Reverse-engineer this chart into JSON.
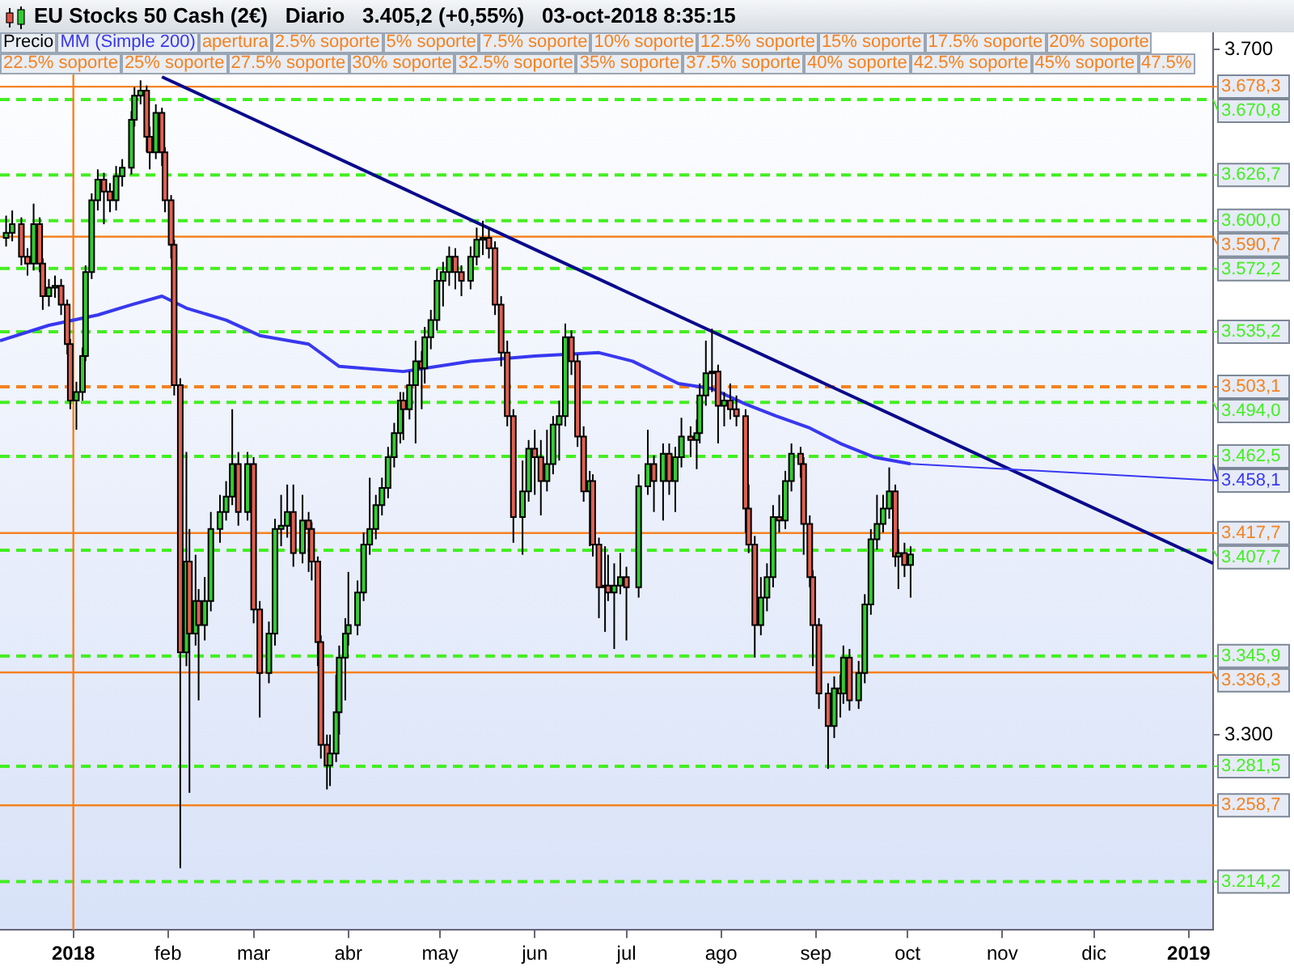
{
  "chart_data": {
    "type": "candlestick",
    "title": "EU Stocks 50 Cash (2€)   Diario   3.405,2 (+0,55%)   03-oct-2018 8:35:15",
    "legend": "top left",
    "grid": false,
    "xlim": [
      "2017-12-08",
      "2019-01-09"
    ],
    "xticks": [
      {
        "value": "2018-01-01",
        "label": "2018"
      },
      {
        "value": "2018-02-01",
        "label": "feb"
      },
      {
        "value": "2018-03-01",
        "label": "mar"
      },
      {
        "value": "2018-04-01",
        "label": "abr"
      },
      {
        "value": "2018-05-01",
        "label": "may"
      },
      {
        "value": "2018-06-01",
        "label": "jun"
      },
      {
        "value": "2018-07-01",
        "label": "jul"
      },
      {
        "value": "2018-08-01",
        "label": "ago"
      },
      {
        "value": "2018-09-01",
        "label": "sep"
      },
      {
        "value": "2018-10-01",
        "label": "oct"
      },
      {
        "value": "2018-11-01",
        "label": "nov"
      },
      {
        "value": "2018-12-01",
        "label": "dic"
      },
      {
        "value": "2019-01-01",
        "label": "2019"
      }
    ],
    "ylim": [
      3186,
      3710
    ],
    "yticks": [
      {
        "value": 3300,
        "label": "3.300"
      },
      {
        "value": 3700,
        "label": "3.700"
      }
    ],
    "series": [
      {
        "name": "Precio",
        "type": "candlestick",
        "x": [
          "2017-12-10",
          "2017-12-12",
          "2017-12-15",
          "2017-12-17",
          "2017-12-19",
          "2017-12-21",
          "2017-12-22",
          "2017-12-24",
          "2017-12-26",
          "2017-12-28",
          "2017-12-30",
          "2017-12-31",
          "2018-01-02",
          "2018-01-04",
          "2018-01-05",
          "2018-01-07",
          "2018-01-09",
          "2018-01-11",
          "2018-01-13",
          "2018-01-15",
          "2018-01-17",
          "2018-01-20",
          "2018-01-21",
          "2018-01-23",
          "2018-01-25",
          "2018-01-26",
          "2018-01-28",
          "2018-01-30",
          "2018-01-31",
          "2018-02-02",
          "2018-02-03",
          "2018-02-05",
          "2018-02-07",
          "2018-02-08",
          "2018-02-10",
          "2018-02-11",
          "2018-02-13",
          "2018-02-15",
          "2018-02-18",
          "2018-02-20",
          "2018-02-22",
          "2018-02-24",
          "2018-02-27",
          "2018-03-01",
          "2018-03-03",
          "2018-03-06",
          "2018-03-08",
          "2018-03-10",
          "2018-03-12",
          "2018-03-14",
          "2018-03-17",
          "2018-03-19",
          "2018-03-20",
          "2018-03-22",
          "2018-03-23",
          "2018-03-25",
          "2018-03-26",
          "2018-03-28",
          "2018-03-29",
          "2018-03-31",
          "2018-04-01",
          "2018-04-04",
          "2018-04-06",
          "2018-04-08",
          "2018-04-10",
          "2018-04-12",
          "2018-04-14",
          "2018-04-16",
          "2018-04-18",
          "2018-04-19",
          "2018-04-21",
          "2018-04-23",
          "2018-04-25",
          "2018-04-26",
          "2018-04-28",
          "2018-04-30",
          "2018-05-02",
          "2018-05-04",
          "2018-05-06",
          "2018-05-08",
          "2018-05-11",
          "2018-05-13",
          "2018-05-15",
          "2018-05-17",
          "2018-05-19",
          "2018-05-21",
          "2018-05-23",
          "2018-05-25",
          "2018-05-28",
          "2018-05-30",
          "2018-06-01",
          "2018-06-03",
          "2018-06-05",
          "2018-06-07",
          "2018-06-09",
          "2018-06-11",
          "2018-06-13",
          "2018-06-15",
          "2018-06-17",
          "2018-06-19",
          "2018-06-20",
          "2018-06-22",
          "2018-06-24",
          "2018-06-25",
          "2018-06-27",
          "2018-06-29",
          "2018-07-01",
          "2018-07-05",
          "2018-07-08",
          "2018-07-10",
          "2018-07-13",
          "2018-07-15",
          "2018-07-17",
          "2018-07-19",
          "2018-07-22",
          "2018-07-24",
          "2018-07-25",
          "2018-07-27",
          "2018-07-29",
          "2018-07-31",
          "2018-08-02",
          "2018-08-04",
          "2018-08-06",
          "2018-08-09",
          "2018-08-10",
          "2018-08-12",
          "2018-08-14",
          "2018-08-16",
          "2018-08-18",
          "2018-08-20",
          "2018-08-22",
          "2018-08-24",
          "2018-08-27",
          "2018-08-28",
          "2018-08-30",
          "2018-08-31",
          "2018-09-02",
          "2018-09-05",
          "2018-09-07",
          "2018-09-09",
          "2018-09-10",
          "2018-09-12",
          "2018-09-15",
          "2018-09-17",
          "2018-09-19",
          "2018-09-21",
          "2018-09-23",
          "2018-09-25",
          "2018-09-27",
          "2018-09-28",
          "2018-09-30",
          "2018-10-02"
        ],
        "ohlc": [
          [
            3590,
            3603,
            3585,
            3593
          ],
          [
            3593,
            3606,
            3588,
            3598
          ],
          [
            3598,
            3602,
            3574,
            3579
          ],
          [
            3579,
            3584,
            3568,
            3575
          ],
          [
            3575,
            3610,
            3571,
            3598
          ],
          [
            3598,
            3602,
            3570,
            3575
          ],
          [
            3575,
            3578,
            3548,
            3556
          ],
          [
            3556,
            3566,
            3550,
            3561
          ],
          [
            3561,
            3568,
            3555,
            3562
          ],
          [
            3562,
            3566,
            3545,
            3551
          ],
          [
            3551,
            3554,
            3522,
            3528
          ],
          [
            3528,
            3531,
            3490,
            3495
          ],
          [
            3495,
            3506,
            3478,
            3500
          ],
          [
            3500,
            3526,
            3495,
            3521
          ],
          [
            3521,
            3574,
            3518,
            3570
          ],
          [
            3570,
            3616,
            3566,
            3612
          ],
          [
            3612,
            3630,
            3606,
            3624
          ],
          [
            3624,
            3628,
            3598,
            3617
          ],
          [
            3617,
            3622,
            3605,
            3612
          ],
          [
            3612,
            3632,
            3606,
            3626
          ],
          [
            3626,
            3636,
            3620,
            3631
          ],
          [
            3631,
            3664,
            3627,
            3659
          ],
          [
            3659,
            3678,
            3655,
            3673
          ],
          [
            3673,
            3682,
            3668,
            3676
          ],
          [
            3676,
            3679,
            3640,
            3649
          ],
          [
            3649,
            3655,
            3630,
            3640
          ],
          [
            3640,
            3668,
            3636,
            3663
          ],
          [
            3663,
            3666,
            3632,
            3640
          ],
          [
            3640,
            3643,
            3605,
            3612
          ],
          [
            3612,
            3615,
            3578,
            3586
          ],
          [
            3586,
            3589,
            3498,
            3504
          ],
          [
            3504,
            3508,
            3222,
            3348
          ],
          [
            3348,
            3465,
            3340,
            3401
          ],
          [
            3401,
            3420,
            3266,
            3359
          ],
          [
            3359,
            3405,
            3352,
            3378
          ],
          [
            3378,
            3385,
            3320,
            3364
          ],
          [
            3364,
            3392,
            3355,
            3378
          ],
          [
            3378,
            3430,
            3372,
            3420
          ],
          [
            3420,
            3440,
            3412,
            3430
          ],
          [
            3430,
            3448,
            3425,
            3439
          ],
          [
            3439,
            3490,
            3434,
            3458
          ],
          [
            3458,
            3465,
            3422,
            3430
          ],
          [
            3430,
            3465,
            3425,
            3458
          ],
          [
            3458,
            3462,
            3365,
            3373
          ],
          [
            3373,
            3378,
            3310,
            3336
          ],
          [
            3336,
            3366,
            3330,
            3359
          ],
          [
            3359,
            3426,
            3352,
            3420
          ],
          [
            3420,
            3440,
            3410,
            3422
          ],
          [
            3422,
            3446,
            3415,
            3430
          ],
          [
            3430,
            3446,
            3398,
            3406
          ],
          [
            3406,
            3440,
            3400,
            3425
          ],
          [
            3425,
            3430,
            3395,
            3420
          ],
          [
            3420,
            3424,
            3390,
            3401
          ],
          [
            3401,
            3404,
            3340,
            3354
          ],
          [
            3354,
            3358,
            3286,
            3294
          ],
          [
            3294,
            3300,
            3268,
            3282
          ],
          [
            3282,
            3300,
            3270,
            3289
          ],
          [
            3289,
            3335,
            3284,
            3313
          ],
          [
            3313,
            3352,
            3300,
            3345
          ],
          [
            3345,
            3368,
            3320,
            3359
          ],
          [
            3359,
            3395,
            3352,
            3364
          ],
          [
            3364,
            3390,
            3358,
            3383
          ],
          [
            3383,
            3418,
            3378,
            3411
          ],
          [
            3411,
            3450,
            3405,
            3420
          ],
          [
            3420,
            3440,
            3414,
            3434
          ],
          [
            3434,
            3450,
            3428,
            3444
          ],
          [
            3444,
            3468,
            3438,
            3462
          ],
          [
            3462,
            3482,
            3456,
            3476
          ],
          [
            3476,
            3500,
            3470,
            3495
          ],
          [
            3495,
            3500,
            3472,
            3490
          ],
          [
            3490,
            3512,
            3484,
            3504
          ],
          [
            3504,
            3530,
            3470,
            3518
          ],
          [
            3518,
            3524,
            3490,
            3514
          ],
          [
            3514,
            3538,
            3505,
            3532
          ],
          [
            3532,
            3548,
            3525,
            3542
          ],
          [
            3542,
            3572,
            3536,
            3565
          ],
          [
            3565,
            3576,
            3550,
            3570
          ],
          [
            3570,
            3585,
            3562,
            3579
          ],
          [
            3579,
            3584,
            3560,
            3570
          ],
          [
            3570,
            3574,
            3556,
            3565
          ],
          [
            3565,
            3585,
            3560,
            3579
          ],
          [
            3579,
            3596,
            3574,
            3589
          ],
          [
            3589,
            3600,
            3580,
            3590
          ],
          [
            3590,
            3596,
            3578,
            3584
          ],
          [
            3584,
            3588,
            3545,
            3551
          ],
          [
            3551,
            3556,
            3515,
            3523
          ],
          [
            3523,
            3530,
            3480,
            3486
          ],
          [
            3486,
            3490,
            3412,
            3427
          ],
          [
            3427,
            3460,
            3405,
            3442
          ],
          [
            3442,
            3472,
            3436,
            3467
          ],
          [
            3467,
            3478,
            3440,
            3462
          ],
          [
            3462,
            3472,
            3428,
            3448
          ],
          [
            3448,
            3478,
            3442,
            3458
          ],
          [
            3458,
            3486,
            3452,
            3481
          ],
          [
            3481,
            3495,
            3460,
            3486
          ],
          [
            3486,
            3540,
            3480,
            3532
          ],
          [
            3532,
            3536,
            3510,
            3518
          ],
          [
            3518,
            3522,
            3468,
            3474
          ],
          [
            3474,
            3480,
            3436,
            3442
          ],
          [
            3442,
            3454,
            3410,
            3448
          ],
          [
            3448,
            3452,
            3404,
            3411
          ],
          [
            3411,
            3415,
            3368,
            3386
          ],
          [
            3386,
            3410,
            3360,
            3387
          ],
          [
            3387,
            3405,
            3378,
            3383
          ],
          [
            3383,
            3400,
            3350,
            3387
          ],
          [
            3387,
            3406,
            3382,
            3392
          ],
          [
            3392,
            3398,
            3355,
            3386
          ],
          [
            3386,
            3452,
            3380,
            3445
          ],
          [
            3445,
            3478,
            3440,
            3458
          ],
          [
            3458,
            3463,
            3430,
            3448
          ],
          [
            3448,
            3470,
            3425,
            3464
          ],
          [
            3464,
            3470,
            3440,
            3448
          ],
          [
            3448,
            3468,
            3430,
            3462
          ],
          [
            3462,
            3485,
            3456,
            3474
          ],
          [
            3474,
            3480,
            3462,
            3472
          ],
          [
            3472,
            3484,
            3455,
            3476
          ],
          [
            3476,
            3505,
            3470,
            3498
          ],
          [
            3498,
            3530,
            3492,
            3511
          ],
          [
            3511,
            3537,
            3500,
            3512
          ],
          [
            3512,
            3516,
            3470,
            3492
          ],
          [
            3492,
            3500,
            3480,
            3495
          ],
          [
            3495,
            3505,
            3484,
            3490
          ],
          [
            3490,
            3498,
            3480,
            3486
          ],
          [
            3486,
            3490,
            3418,
            3432
          ],
          [
            3432,
            3446,
            3406,
            3411
          ],
          [
            3411,
            3416,
            3345,
            3364
          ],
          [
            3364,
            3392,
            3358,
            3380
          ],
          [
            3380,
            3400,
            3372,
            3392
          ],
          [
            3392,
            3434,
            3386,
            3427
          ],
          [
            3427,
            3440,
            3418,
            3425
          ],
          [
            3425,
            3454,
            3420,
            3448
          ],
          [
            3448,
            3470,
            3442,
            3464
          ],
          [
            3464,
            3468,
            3450,
            3458
          ],
          [
            3458,
            3462,
            3405,
            3423
          ],
          [
            3423,
            3428,
            3386,
            3392
          ],
          [
            3392,
            3396,
            3340,
            3364
          ],
          [
            3364,
            3368,
            3315,
            3324
          ],
          [
            3324,
            3330,
            3280,
            3305
          ],
          [
            3305,
            3334,
            3298,
            3327
          ],
          [
            3327,
            3335,
            3310,
            3324
          ],
          [
            3324,
            3352,
            3318,
            3345
          ],
          [
            3345,
            3350,
            3314,
            3320
          ],
          [
            3320,
            3343,
            3315,
            3336
          ],
          [
            3336,
            3382,
            3330,
            3376
          ],
          [
            3376,
            3420,
            3370,
            3414
          ],
          [
            3414,
            3440,
            3408,
            3423
          ],
          [
            3423,
            3440,
            3418,
            3432
          ],
          [
            3432,
            3456,
            3426,
            3442
          ],
          [
            3442,
            3446,
            3398,
            3404
          ],
          [
            3404,
            3420,
            3385,
            3406
          ],
          [
            3406,
            3412,
            3392,
            3399
          ],
          [
            3399,
            3410,
            3380,
            3405.2
          ]
        ]
      },
      {
        "name": "MM (Simple 200)",
        "type": "line",
        "color": "#3838f0",
        "x": [
          "2017-12-08",
          "2017-12-24",
          "2018-01-09",
          "2018-01-20",
          "2018-01-30",
          "2018-02-07",
          "2018-02-20",
          "2018-03-03",
          "2018-03-19",
          "2018-03-29",
          "2018-04-19",
          "2018-05-11",
          "2018-06-01",
          "2018-06-22",
          "2018-07-03",
          "2018-07-18",
          "2018-07-29",
          "2018-08-09",
          "2018-08-19",
          "2018-08-30",
          "2018-09-09",
          "2018-09-20",
          "2018-10-02"
        ],
        "values": [
          3530,
          3539,
          3545,
          3551,
          3556,
          3549,
          3542,
          3533,
          3528,
          3515,
          3512,
          3518,
          3521,
          3523,
          3518,
          3505,
          3502,
          3493,
          3486,
          3479,
          3470,
          3462,
          3458.1
        ]
      },
      {
        "type": "line",
        "color": "#0a0a8c",
        "x": [
          "2018-01-30",
          "2019-01-09"
        ],
        "values": [
          3684,
          3400
        ]
      }
    ],
    "ref_lines": [
      {
        "axis": "y",
        "value": 3670.8,
        "label": "3.670,8",
        "color": "#44ee22",
        "line_style": "dashed"
      },
      {
        "axis": "y",
        "value": 3626.7,
        "label": "3.626,7",
        "color": "#44ee22",
        "line_style": "dashed"
      },
      {
        "axis": "y",
        "value": 3600.0,
        "label": "3.600,0",
        "color": "#44ee22",
        "line_style": "dashed"
      },
      {
        "axis": "y",
        "value": 3572.2,
        "label": "3.572,2",
        "color": "#44ee22",
        "line_style": "dashed"
      },
      {
        "axis": "y",
        "value": 3535.2,
        "label": "3.535,2",
        "color": "#44ee22",
        "line_style": "dashed"
      },
      {
        "axis": "y",
        "value": 3494.0,
        "label": "3.494,0",
        "color": "#44ee22",
        "line_style": "dashed"
      },
      {
        "axis": "y",
        "value": 3462.5,
        "label": "3.462,5",
        "color": "#44ee22",
        "line_style": "dashed"
      },
      {
        "axis": "y",
        "value": 3407.7,
        "label": "3.407,7",
        "color": "#44ee22",
        "line_style": "dashed"
      },
      {
        "axis": "y",
        "value": 3345.9,
        "label": "3.345,9",
        "color": "#44ee22",
        "line_style": "dashed"
      },
      {
        "axis": "y",
        "value": 3281.5,
        "label": "3.281,5",
        "color": "#44ee22",
        "line_style": "dashed"
      },
      {
        "axis": "y",
        "value": 3214.2,
        "label": "3.214,2",
        "color": "#44ee22",
        "line_style": "dashed"
      },
      {
        "axis": "y",
        "value": 3678.3,
        "label": "3.678,3",
        "color": "#f58220",
        "line_style": "solid"
      },
      {
        "axis": "y",
        "value": 3590.7,
        "label": "3.590,7",
        "color": "#f58220",
        "line_style": "solid"
      },
      {
        "axis": "y",
        "value": 3503.1,
        "label": "3.503,1",
        "color": "#f58220",
        "line_style": "dashed"
      },
      {
        "axis": "y",
        "value": 3417.7,
        "label": "3.417,7",
        "color": "#f58220",
        "line_style": "solid"
      },
      {
        "axis": "y",
        "value": 3336.3,
        "label": "3.336,3",
        "color": "#f58220",
        "line_style": "solid"
      },
      {
        "axis": "y",
        "value": 3258.7,
        "label": "3.258,7",
        "color": "#f58220",
        "line_style": "solid"
      },
      {
        "axis": "x",
        "value": "2018-01-01",
        "color": "#f58220",
        "line_style": "solid"
      }
    ],
    "annotations": [
      {
        "text": "3.458,1",
        "x": "2018-10-02",
        "y": 3458.1
      },
      "apertura",
      "2.5% soporte",
      "5% soporte",
      "7.5% soporte",
      "10% soporte",
      "12.5% soporte",
      "15% soporte",
      "17.5% soporte",
      "20% soporte",
      "22.5% soporte",
      "25% soporte",
      "27.5% soporte",
      "30% soporte",
      "32.5% soporte",
      "35% soporte",
      "37.5% soporte",
      "40% soporte",
      "42.5% soporte",
      "45% soporte",
      "47.5%"
    ]
  }
}
